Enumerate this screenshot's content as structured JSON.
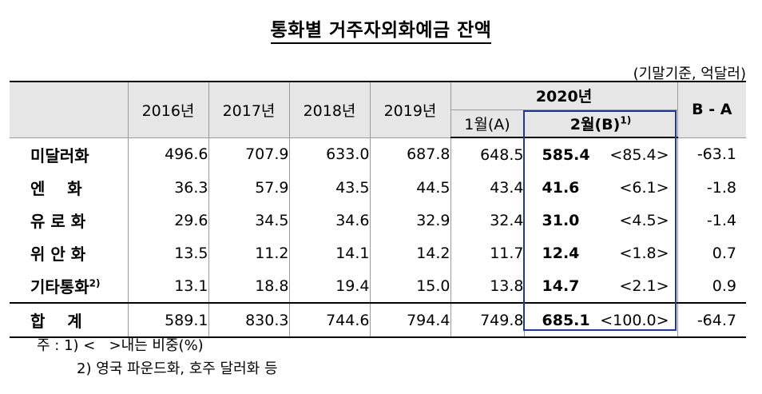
{
  "title": "통화별 거주자외화예금 잔액",
  "unit": "(기말기준, 억달러)",
  "header": {
    "years": [
      "2016년",
      "2017년",
      "2018년",
      "2019년"
    ],
    "y2020": "2020년",
    "jan": "1월(A)",
    "feb": "2월(B)",
    "feb_note": "1)",
    "ba": "B - A"
  },
  "rows": [
    {
      "label": "미달러화",
      "note": "",
      "v2016": "496.6",
      "v2017": "707.9",
      "v2018": "633.0",
      "v2019": "687.8",
      "jan": "648.5",
      "feb": "585.4",
      "share": "<85.4>",
      "ba": "-63.1"
    },
    {
      "label": "엔    화",
      "note": "",
      "v2016": "36.3",
      "v2017": "57.9",
      "v2018": "43.5",
      "v2019": "44.5",
      "jan": "43.4",
      "feb": "41.6",
      "share": "<6.1>",
      "ba": "-1.8"
    },
    {
      "label": "유 로 화",
      "note": "",
      "v2016": "29.6",
      "v2017": "34.5",
      "v2018": "34.6",
      "v2019": "32.9",
      "jan": "32.4",
      "feb": "31.0",
      "share": "<4.5>",
      "ba": "-1.4"
    },
    {
      "label": "위 안 화",
      "note": "",
      "v2016": "13.5",
      "v2017": "11.2",
      "v2018": "14.1",
      "v2019": "14.2",
      "jan": "11.7",
      "feb": "12.4",
      "share": "<1.8>",
      "ba": "0.7"
    },
    {
      "label": "기타통화",
      "note": "2)",
      "v2016": "13.1",
      "v2017": "18.8",
      "v2018": "19.4",
      "v2019": "15.0",
      "jan": "13.8",
      "feb": "14.7",
      "share": "<2.1>",
      "ba": "0.9"
    }
  ],
  "total": {
    "label": "합    계",
    "v2016": "589.1",
    "v2017": "830.3",
    "v2018": "744.6",
    "v2019": "794.4",
    "jan": "749.8",
    "feb": "685.1",
    "share": "<100.0>",
    "ba": "-64.7"
  },
  "notes": {
    "n1": "주 : 1) <   >내는 비중(%)",
    "n2": "2) 영국 파운드화, 호주 달러화 등"
  }
}
